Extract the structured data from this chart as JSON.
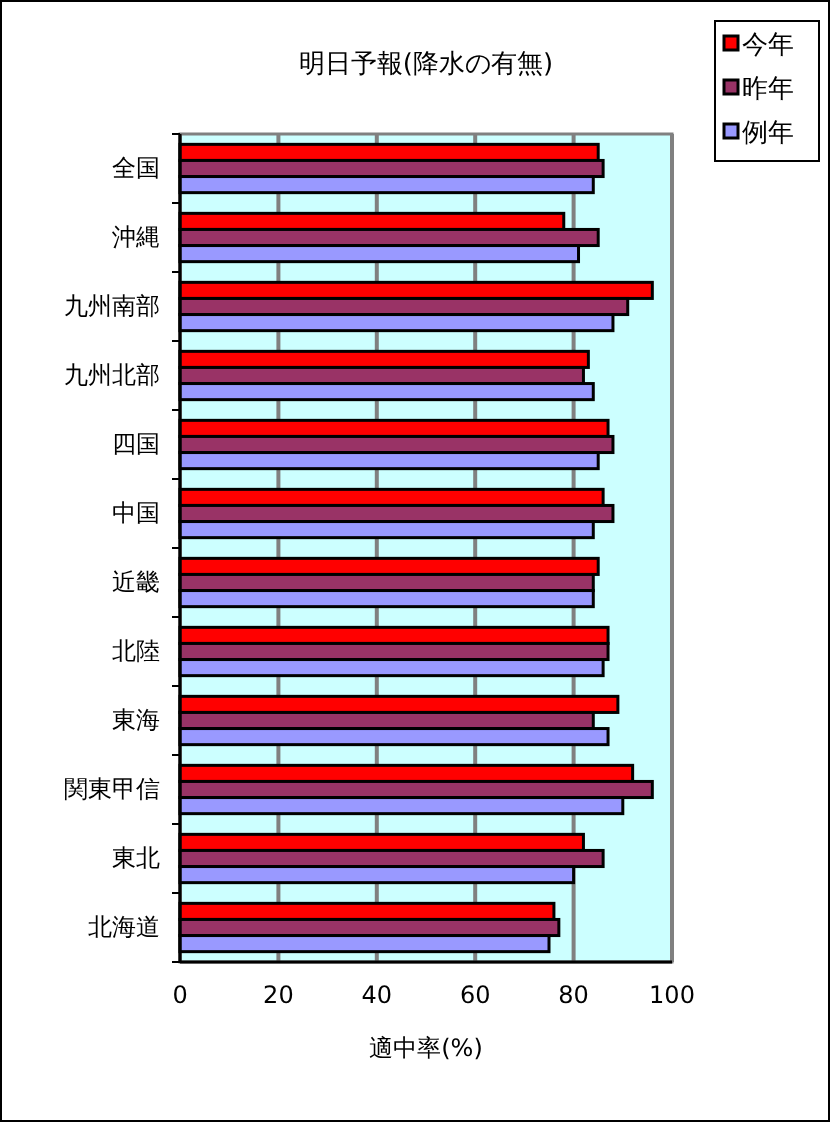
{
  "chart_data": {
    "type": "bar",
    "orientation": "horizontal",
    "title": "明日予報(降水の有無)",
    "xlabel": "適中率(%)",
    "categories": [
      "全国",
      "沖縄",
      "九州南部",
      "九州北部",
      "四国",
      "中国",
      "近畿",
      "北陸",
      "東海",
      "関東甲信",
      "東北",
      "北海道"
    ],
    "series": [
      {
        "name": "今年",
        "color": "#ff0000",
        "values": [
          85,
          78,
          96,
          83,
          87,
          86,
          85,
          87,
          89,
          92,
          82,
          76
        ]
      },
      {
        "name": "昨年",
        "color": "#993366",
        "values": [
          86,
          85,
          91,
          82,
          88,
          88,
          84,
          87,
          84,
          96,
          86,
          77
        ]
      },
      {
        "name": "例年",
        "color": "#9999ff",
        "values": [
          84,
          81,
          88,
          84,
          85,
          84,
          84,
          86,
          87,
          90,
          80,
          75
        ]
      }
    ],
    "xlim": [
      0,
      100
    ],
    "xticks": [
      0,
      20,
      40,
      60,
      80,
      100
    ],
    "grid": "x",
    "legend": "top right"
  }
}
